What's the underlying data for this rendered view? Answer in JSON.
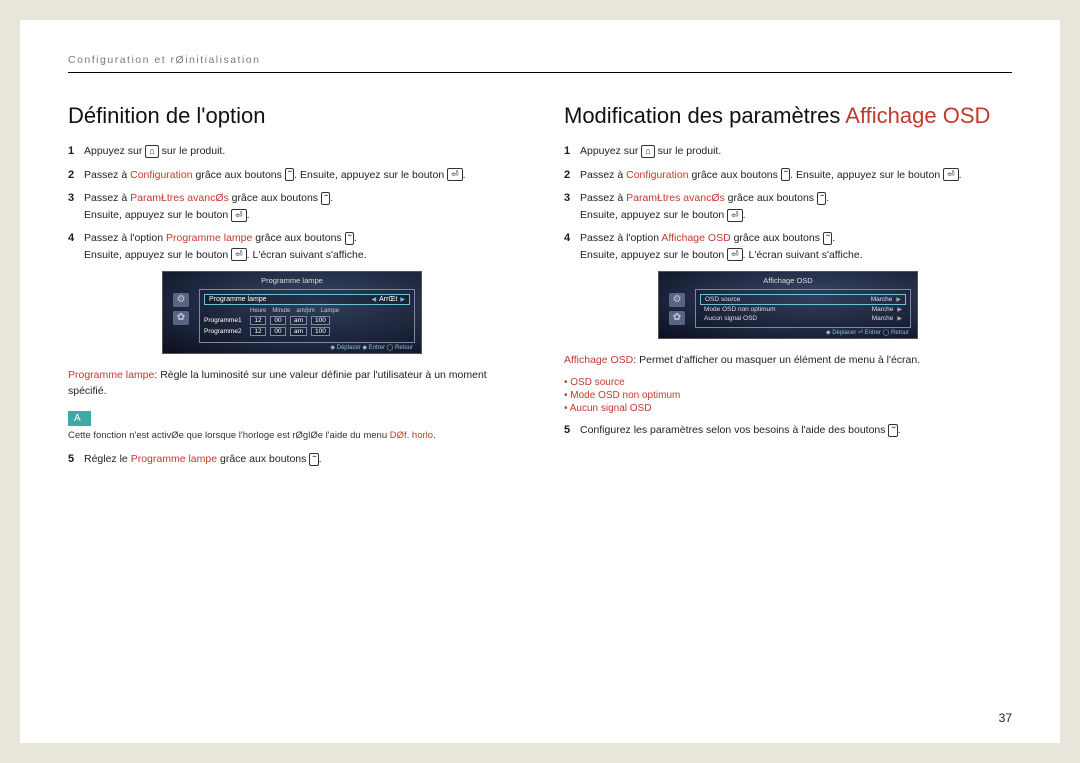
{
  "header": "Configuration et rØinitialisation",
  "page_number": "37",
  "left": {
    "title": "Définition de l'option",
    "steps": [
      {
        "n": "1",
        "pre": "Appuyez sur ",
        "icon": "menu",
        "post": " sur le produit."
      },
      {
        "n": "2",
        "pre": "Passez à ",
        "hl": "Configuration",
        "mid": " grâce aux boutons ",
        "icon": "updown",
        "post2": ". Ensuite, appuyez sur le bouton ",
        "icon2": "enter",
        "post3": "."
      },
      {
        "n": "3",
        "pre": "Passez à ",
        "hl": "ParamŁtres avancØs",
        "mid": " grâce aux boutons ",
        "icon": "updown",
        "post2": ".",
        "line2a": "Ensuite, appuyez sur le bouton ",
        "icon3": "enter",
        "line2b": "."
      },
      {
        "n": "4",
        "pre": "Passez à l'option ",
        "hl": "Programme lampe",
        "mid": " grâce aux boutons ",
        "icon": "updown",
        "post2": ".",
        "line2a": "Ensuite, appuyez sur le bouton ",
        "icon3": "enter",
        "line2b": ". L'écran suivant s'affiche."
      }
    ],
    "osd": {
      "title": "Programme lampe",
      "sel_left": "Programme lampe",
      "sel_right": "ArrŒt",
      "hdr": [
        "Heure",
        "Minute",
        "am/pm",
        "Lampe"
      ],
      "rows": [
        {
          "label": "Programme1",
          "cells": [
            "12",
            "00",
            "am",
            "100"
          ]
        },
        {
          "label": "Programme2",
          "cells": [
            "12",
            "00",
            "am",
            "100"
          ]
        }
      ],
      "footer": "◆ Déplacer   ◆ Entrer   ◯ Retour"
    },
    "desc_hl": "Programme lampe",
    "desc_rest": ": Règle la luminosité sur une valeur définie par l'utilisateur à un moment spécifié.",
    "note_badge": "A",
    "note_text_a": "Cette fonction n'est activØe que lorsque l'horloge est rØglØe   l'aide du menu ",
    "note_text_hl": "DØf. horlo",
    "note_text_b": ".",
    "step5": {
      "n": "5",
      "pre": "Réglez le ",
      "hl": "Programme lampe",
      "mid": " grâce aux boutons ",
      "icon": "updown",
      "post": "."
    }
  },
  "right": {
    "title_a": "Modification des paramètres ",
    "title_b": "Affichage OSD",
    "steps": [
      {
        "n": "1",
        "pre": "Appuyez sur ",
        "icon": "menu",
        "post": " sur le produit."
      },
      {
        "n": "2",
        "pre": "Passez à ",
        "hl": "Configuration",
        "mid": " grâce aux boutons ",
        "icon": "updown",
        "post2": ". Ensuite, appuyez sur le bouton ",
        "icon2": "enter",
        "post3": "."
      },
      {
        "n": "3",
        "pre": "Passez à ",
        "hl": "ParamŁtres avancØs",
        "mid": " grâce aux boutons ",
        "icon": "updown",
        "post2": ".",
        "line2a": "Ensuite, appuyez sur le bouton ",
        "icon3": "enter",
        "line2b": "."
      },
      {
        "n": "4",
        "pre": "Passez à l'option ",
        "hl": "Affichage OSD",
        "mid": " grâce aux boutons ",
        "icon": "updown",
        "post2": ".",
        "line2a": "Ensuite, appuyez sur le bouton ",
        "icon3": "enter",
        "line2b": ". L'écran suivant s'affiche."
      }
    ],
    "osd": {
      "title": "Affichage OSD",
      "rows": [
        {
          "label": "OSD source",
          "val": "Marche",
          "active": true
        },
        {
          "label": "Mode OSD non optimum",
          "val": "Marche",
          "active": false
        },
        {
          "label": "Aucun signal OSD",
          "val": "Marche",
          "active": false
        }
      ],
      "footer": "◆ Déplacer   ⏎ Entrer   ◯ Retour"
    },
    "desc_hl": "Affichage OSD",
    "desc_rest": ": Permet d'afficher ou masquer un élément de menu à l'écran.",
    "bullets": [
      "OSD source",
      "Mode OSD non optimum",
      "Aucun signal OSD"
    ],
    "step5": {
      "n": "5",
      "pre": "Configurez les paramètres selon vos besoins à l'aide des boutons ",
      "icon": "updown",
      "post": "."
    }
  },
  "icons": {
    "menu": "⌂",
    "updown": "ˆˇ",
    "enter": "⏎"
  }
}
